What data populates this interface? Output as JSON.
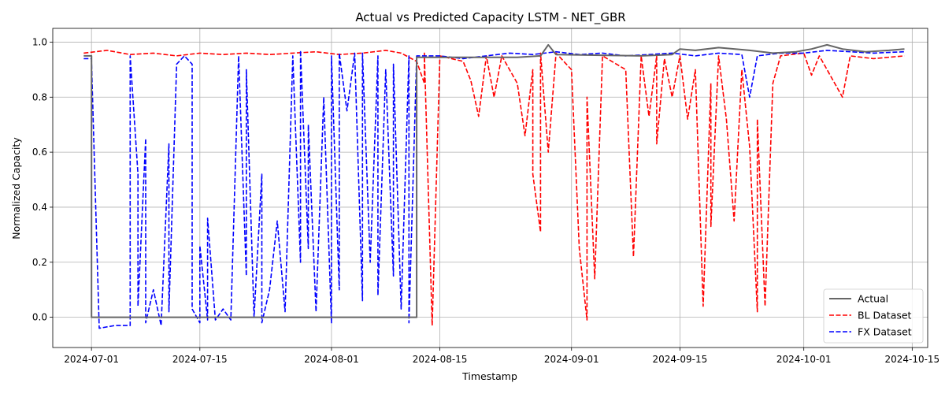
{
  "chart_data": {
    "type": "line",
    "title": "Actual vs Predicted Capacity LSTM - NET_GBR",
    "xlabel": "Timestamp",
    "ylabel": "Normalized Capacity",
    "x_axis_type": "date",
    "xlim": [
      "2024-06-26",
      "2024-10-17"
    ],
    "ylim": [
      -0.11,
      1.05
    ],
    "x_ticks": [
      "2024-07-01",
      "2024-07-15",
      "2024-08-01",
      "2024-08-15",
      "2024-09-01",
      "2024-09-15",
      "2024-10-01",
      "2024-10-15"
    ],
    "y_ticks": [
      0.0,
      0.2,
      0.4,
      0.6,
      0.8,
      1.0
    ],
    "y_tick_labels": [
      "0.0",
      "0.2",
      "0.4",
      "0.6",
      "0.8",
      "1.0"
    ],
    "grid": true,
    "legend_position": "lower-right",
    "series": [
      {
        "name": "Actual",
        "color": "#666666",
        "style": "solid",
        "points": [
          [
            "2024-06-30",
            0.95
          ],
          [
            "2024-07-01",
            0.95
          ],
          [
            "2024-07-01",
            0.0
          ],
          [
            "2024-08-12",
            0.0
          ],
          [
            "2024-08-12",
            0.945
          ],
          [
            "2024-08-25",
            0.945
          ],
          [
            "2024-08-28",
            0.95
          ],
          [
            "2024-08-29",
            0.99
          ],
          [
            "2024-08-30",
            0.955
          ],
          [
            "2024-09-10",
            0.95
          ],
          [
            "2024-09-14",
            0.955
          ],
          [
            "2024-09-15",
            0.975
          ],
          [
            "2024-09-17",
            0.97
          ],
          [
            "2024-09-20",
            0.98
          ],
          [
            "2024-09-24",
            0.97
          ],
          [
            "2024-09-27",
            0.96
          ],
          [
            "2024-09-30",
            0.965
          ],
          [
            "2024-10-02",
            0.975
          ],
          [
            "2024-10-04",
            0.99
          ],
          [
            "2024-10-06",
            0.975
          ],
          [
            "2024-10-09",
            0.965
          ],
          [
            "2024-10-12",
            0.97
          ],
          [
            "2024-10-14",
            0.975
          ]
        ]
      },
      {
        "name": "BL Dataset",
        "color": "#ff0000",
        "style": "dashed",
        "points": [
          [
            "2024-06-30",
            0.96
          ],
          [
            "2024-07-03",
            0.97
          ],
          [
            "2024-07-06",
            0.955
          ],
          [
            "2024-07-09",
            0.96
          ],
          [
            "2024-07-12",
            0.95
          ],
          [
            "2024-07-15",
            0.96
          ],
          [
            "2024-07-18",
            0.955
          ],
          [
            "2024-07-21",
            0.96
          ],
          [
            "2024-07-24",
            0.955
          ],
          [
            "2024-07-27",
            0.96
          ],
          [
            "2024-07-30",
            0.965
          ],
          [
            "2024-08-02",
            0.955
          ],
          [
            "2024-08-05",
            0.96
          ],
          [
            "2024-08-08",
            0.97
          ],
          [
            "2024-08-10",
            0.96
          ],
          [
            "2024-08-12",
            0.93
          ],
          [
            "2024-08-13",
            0.85
          ],
          [
            "2024-08-13",
            0.96
          ],
          [
            "2024-08-14",
            -0.03
          ],
          [
            "2024-08-15",
            0.95
          ],
          [
            "2024-08-18",
            0.93
          ],
          [
            "2024-08-19",
            0.86
          ],
          [
            "2024-08-20",
            0.73
          ],
          [
            "2024-08-21",
            0.95
          ],
          [
            "2024-08-22",
            0.8
          ],
          [
            "2024-08-23",
            0.95
          ],
          [
            "2024-08-25",
            0.85
          ],
          [
            "2024-08-26",
            0.66
          ],
          [
            "2024-08-27",
            0.9
          ],
          [
            "2024-08-27",
            0.52
          ],
          [
            "2024-08-28",
            0.31
          ],
          [
            "2024-08-28",
            0.96
          ],
          [
            "2024-08-29",
            0.6
          ],
          [
            "2024-08-30",
            0.96
          ],
          [
            "2024-09-01",
            0.9
          ],
          [
            "2024-09-02",
            0.25
          ],
          [
            "2024-09-03",
            -0.01
          ],
          [
            "2024-09-03",
            0.8
          ],
          [
            "2024-09-04",
            0.14
          ],
          [
            "2024-09-05",
            0.95
          ],
          [
            "2024-09-08",
            0.9
          ],
          [
            "2024-09-09",
            0.22
          ],
          [
            "2024-09-10",
            0.95
          ],
          [
            "2024-09-11",
            0.73
          ],
          [
            "2024-09-12",
            0.95
          ],
          [
            "2024-09-12",
            0.63
          ],
          [
            "2024-09-13",
            0.94
          ],
          [
            "2024-09-14",
            0.8
          ],
          [
            "2024-09-15",
            0.95
          ],
          [
            "2024-09-16",
            0.72
          ],
          [
            "2024-09-17",
            0.9
          ],
          [
            "2024-09-18",
            0.04
          ],
          [
            "2024-09-19",
            0.85
          ],
          [
            "2024-09-19",
            0.33
          ],
          [
            "2024-09-20",
            0.95
          ],
          [
            "2024-09-21",
            0.72
          ],
          [
            "2024-09-22",
            0.35
          ],
          [
            "2024-09-23",
            0.9
          ],
          [
            "2024-09-24",
            0.62
          ],
          [
            "2024-09-25",
            0.02
          ],
          [
            "2024-09-25",
            0.72
          ],
          [
            "2024-09-26",
            0.04
          ],
          [
            "2024-09-27",
            0.85
          ],
          [
            "2024-09-28",
            0.95
          ],
          [
            "2024-10-01",
            0.96
          ],
          [
            "2024-10-02",
            0.88
          ],
          [
            "2024-10-03",
            0.95
          ],
          [
            "2024-10-06",
            0.8
          ],
          [
            "2024-10-07",
            0.95
          ],
          [
            "2024-10-10",
            0.94
          ],
          [
            "2024-10-14",
            0.95
          ]
        ]
      },
      {
        "name": "FX Dataset",
        "color": "#0000ff",
        "style": "dashed",
        "points": [
          [
            "2024-06-30",
            0.94
          ],
          [
            "2024-07-01",
            0.94
          ],
          [
            "2024-07-01",
            0.93
          ],
          [
            "2024-07-02",
            -0.04
          ],
          [
            "2024-07-04",
            -0.03
          ],
          [
            "2024-07-06",
            -0.03
          ],
          [
            "2024-07-06",
            0.95
          ],
          [
            "2024-07-07",
            0.52
          ],
          [
            "2024-07-07",
            0.04
          ],
          [
            "2024-07-08",
            0.65
          ],
          [
            "2024-07-08",
            -0.02
          ],
          [
            "2024-07-09",
            0.1
          ],
          [
            "2024-07-10",
            -0.03
          ],
          [
            "2024-07-11",
            0.63
          ],
          [
            "2024-07-11",
            0.02
          ],
          [
            "2024-07-12",
            0.92
          ],
          [
            "2024-07-13",
            0.95
          ],
          [
            "2024-07-14",
            0.92
          ],
          [
            "2024-07-14",
            0.03
          ],
          [
            "2024-07-15",
            -0.02
          ],
          [
            "2024-07-15",
            0.26
          ],
          [
            "2024-07-16",
            -0.01
          ],
          [
            "2024-07-16",
            0.36
          ],
          [
            "2024-07-17",
            -0.01
          ],
          [
            "2024-07-18",
            0.03
          ],
          [
            "2024-07-19",
            -0.01
          ],
          [
            "2024-07-20",
            0.95
          ],
          [
            "2024-07-21",
            0.15
          ],
          [
            "2024-07-21",
            0.9
          ],
          [
            "2024-07-22",
            0.0
          ],
          [
            "2024-07-23",
            0.52
          ],
          [
            "2024-07-23",
            -0.02
          ],
          [
            "2024-07-24",
            0.1
          ],
          [
            "2024-07-25",
            0.35
          ],
          [
            "2024-07-26",
            0.02
          ],
          [
            "2024-07-27",
            0.95
          ],
          [
            "2024-07-28",
            0.2
          ],
          [
            "2024-07-28",
            0.97
          ],
          [
            "2024-07-29",
            0.25
          ],
          [
            "2024-07-29",
            0.7
          ],
          [
            "2024-07-30",
            0.02
          ],
          [
            "2024-07-31",
            0.8
          ],
          [
            "2024-08-01",
            -0.02
          ],
          [
            "2024-08-01",
            0.95
          ],
          [
            "2024-08-02",
            0.1
          ],
          [
            "2024-08-02",
            0.96
          ],
          [
            "2024-08-03",
            0.75
          ],
          [
            "2024-08-04",
            0.96
          ],
          [
            "2024-08-05",
            0.06
          ],
          [
            "2024-08-05",
            0.96
          ],
          [
            "2024-08-06",
            0.2
          ],
          [
            "2024-08-07",
            0.95
          ],
          [
            "2024-08-07",
            0.08
          ],
          [
            "2024-08-08",
            0.9
          ],
          [
            "2024-08-09",
            0.15
          ],
          [
            "2024-08-09",
            0.92
          ],
          [
            "2024-08-10",
            0.03
          ],
          [
            "2024-08-11",
            0.95
          ],
          [
            "2024-08-11",
            -0.02
          ],
          [
            "2024-08-12",
            0.95
          ],
          [
            "2024-08-15",
            0.95
          ],
          [
            "2024-08-18",
            0.94
          ],
          [
            "2024-08-21",
            0.95
          ],
          [
            "2024-08-24",
            0.96
          ],
          [
            "2024-08-27",
            0.955
          ],
          [
            "2024-08-30",
            0.965
          ],
          [
            "2024-09-02",
            0.955
          ],
          [
            "2024-09-05",
            0.96
          ],
          [
            "2024-09-08",
            0.95
          ],
          [
            "2024-09-11",
            0.955
          ],
          [
            "2024-09-14",
            0.96
          ],
          [
            "2024-09-17",
            0.95
          ],
          [
            "2024-09-20",
            0.96
          ],
          [
            "2024-09-23",
            0.955
          ],
          [
            "2024-09-24",
            0.8
          ],
          [
            "2024-09-25",
            0.95
          ],
          [
            "2024-09-28",
            0.96
          ],
          [
            "2024-10-01",
            0.96
          ],
          [
            "2024-10-04",
            0.97
          ],
          [
            "2024-10-07",
            0.965
          ],
          [
            "2024-10-10",
            0.96
          ],
          [
            "2024-10-14",
            0.965
          ]
        ]
      }
    ]
  }
}
